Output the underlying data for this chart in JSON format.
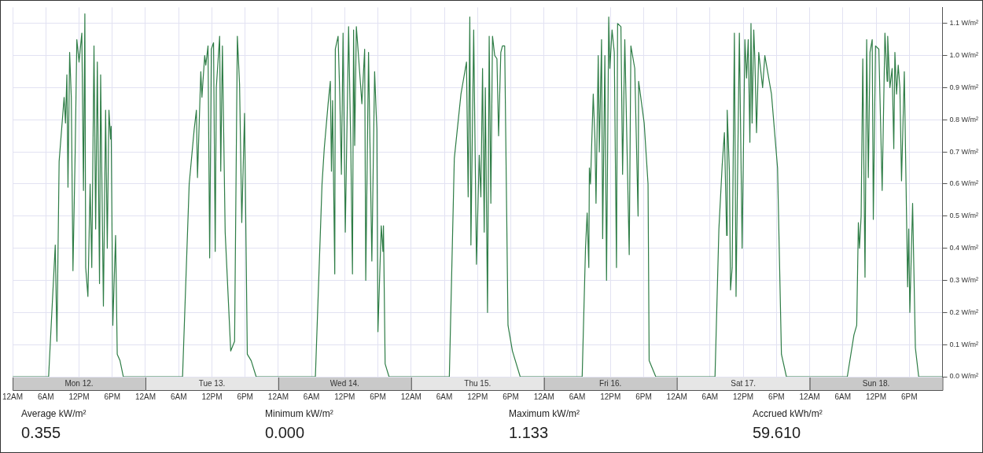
{
  "chart_data": {
    "type": "line",
    "marker": "none",
    "line_style": "solid",
    "grid": true,
    "legend": false,
    "xlim": [
      "--03-12T00:00",
      "--03-19T00:00"
    ],
    "ylim": [
      0,
      1.15
    ],
    "xticks": [
      {
        "value": "--03-12T00:00",
        "label": "12AM"
      },
      {
        "value": "--03-12T06:00",
        "label": "6AM"
      },
      {
        "value": "--03-12T12:00",
        "label": "12PM"
      },
      {
        "value": "--03-12T18:00",
        "label": "6PM"
      },
      {
        "value": "--03-13T00:00",
        "label": "12AM"
      },
      {
        "value": "--03-13T06:00",
        "label": "6AM"
      },
      {
        "value": "--03-13T12:00",
        "label": "12PM"
      },
      {
        "value": "--03-13T18:00",
        "label": "6PM"
      },
      {
        "value": "--03-14T00:00",
        "label": "12AM"
      },
      {
        "value": "--03-14T06:00",
        "label": "6AM"
      },
      {
        "value": "--03-14T12:00",
        "label": "12PM"
      },
      {
        "value": "--03-14T18:00",
        "label": "6PM"
      },
      {
        "value": "--03-15T00:00",
        "label": "12AM"
      },
      {
        "value": "--03-15T06:00",
        "label": "6AM"
      },
      {
        "value": "--03-15T12:00",
        "label": "12PM"
      },
      {
        "value": "--03-15T18:00",
        "label": "6PM"
      },
      {
        "value": "--03-16T00:00",
        "label": "12AM"
      },
      {
        "value": "--03-16T06:00",
        "label": "6AM"
      },
      {
        "value": "--03-16T12:00",
        "label": "12PM"
      },
      {
        "value": "--03-16T18:00",
        "label": "6PM"
      },
      {
        "value": "--03-17T00:00",
        "label": "12AM"
      },
      {
        "value": "--03-17T06:00",
        "label": "6AM"
      },
      {
        "value": "--03-17T12:00",
        "label": "12PM"
      },
      {
        "value": "--03-17T18:00",
        "label": "6PM"
      },
      {
        "value": "--03-18T00:00",
        "label": "12AM"
      },
      {
        "value": "--03-18T06:00",
        "label": "6AM"
      },
      {
        "value": "--03-18T12:00",
        "label": "12PM"
      },
      {
        "value": "--03-18T18:00",
        "label": "6PM"
      }
    ],
    "x2lim": [
      "--03-12T00:00",
      "--03-19T00:00"
    ],
    "x2ticks": [
      {
        "value": "--03-12T12:00",
        "label": "Mon 12."
      },
      {
        "value": "--03-13T12:00",
        "label": "Tue 13."
      },
      {
        "value": "--03-14T12:00",
        "label": "Wed 14."
      },
      {
        "value": "--03-15T12:00",
        "label": "Thu 15."
      },
      {
        "value": "--03-16T12:00",
        "label": "Fri 16."
      },
      {
        "value": "--03-17T12:00",
        "label": "Sat 17."
      },
      {
        "value": "--03-18T12:00",
        "label": "Sun 18."
      }
    ],
    "yticks": [
      {
        "value": 0,
        "label": "0.0 W/m²"
      },
      {
        "value": 0.1,
        "label": "0.1 W/m²"
      },
      {
        "value": 0.2,
        "label": "0.2 W/m²"
      },
      {
        "value": 0.3,
        "label": "0.3 W/m²"
      },
      {
        "value": 0.4,
        "label": "0.4 W/m²"
      },
      {
        "value": 0.5,
        "label": "0.5 W/m²"
      },
      {
        "value": 0.6,
        "label": "0.6 W/m²"
      },
      {
        "value": 0.7,
        "label": "0.7 W/m²"
      },
      {
        "value": 0.8,
        "label": "0.8 W/m²"
      },
      {
        "value": 0.9,
        "label": "0.9 W/m²"
      },
      {
        "value": 1.0,
        "label": "1.0 W/m²"
      },
      {
        "value": 1.1,
        "label": "1.1 W/m²"
      }
    ],
    "x": [
      "--03-12T00:00",
      "--03-12T06:30",
      "--03-12T07:42",
      "--03-12T08:00",
      "--03-12T08:24",
      "--03-12T09:18",
      "--03-12T09:33",
      "--03-12T09:48",
      "--03-12T10:00",
      "--03-12T10:18",
      "--03-12T10:36",
      "--03-12T10:54",
      "--03-12T11:18",
      "--03-12T11:36",
      "--03-12T12:00",
      "--03-12T12:30",
      "--03-12T12:48",
      "--03-12T13:03",
      "--03-12T13:12",
      "--03-12T13:36",
      "--03-12T14:00",
      "--03-12T14:18",
      "--03-12T14:42",
      "--03-12T15:00",
      "--03-12T15:18",
      "--03-12T15:42",
      "--03-12T15:54",
      "--03-12T16:24",
      "--03-12T16:48",
      "--03-12T17:06",
      "--03-12T17:24",
      "--03-12T17:42",
      "--03-12T17:48",
      "--03-12T18:06",
      "--03-12T18:36",
      "--03-12T18:54",
      "--03-12T19:24",
      "--03-12T20:00",
      "--03-13T06:42",
      "--03-13T07:54",
      "--03-13T08:48",
      "--03-13T09:12",
      "--03-13T09:24",
      "--03-13T10:00",
      "--03-13T10:12",
      "--03-13T10:42",
      "--03-13T10:54",
      "--03-13T11:18",
      "--03-13T11:36",
      "--03-13T11:54",
      "--03-13T12:18",
      "--03-13T12:36",
      "--03-13T12:48",
      "--03-13T13:24",
      "--03-13T13:36",
      "--03-13T13:54",
      "--03-13T14:24",
      "--03-13T15:24",
      "--03-13T16:06",
      "--03-13T16:36",
      "--03-13T17:00",
      "--03-13T17:24",
      "--03-13T17:54",
      "--03-13T18:24",
      "--03-13T19:06",
      "--03-13T20:00",
      "--03-14T06:42",
      "--03-14T07:54",
      "--03-14T08:18",
      "--03-14T09:00",
      "--03-14T09:24",
      "--03-14T09:36",
      "--03-14T09:48",
      "--03-14T10:12",
      "--03-14T10:18",
      "--03-14T10:48",
      "--03-14T11:06",
      "--03-14T11:24",
      "--03-14T11:42",
      "--03-14T12:06",
      "--03-14T12:42",
      "--03-14T13:06",
      "--03-14T13:24",
      "--03-14T13:36",
      "--03-14T13:48",
      "--03-14T14:06",
      "--03-14T14:24",
      "--03-14T15:06",
      "--03-14T15:36",
      "--03-14T15:48",
      "--03-14T16:18",
      "--03-14T16:54",
      "--03-14T17:24",
      "--03-14T17:48",
      "--03-14T18:00",
      "--03-14T18:36",
      "--03-14T18:54",
      "--03-14T19:00",
      "--03-14T19:18",
      "--03-14T20:00",
      "--03-15T06:54",
      "--03-15T07:48",
      "--03-15T09:00",
      "--03-15T09:30",
      "--03-15T10:00",
      "--03-15T10:18",
      "--03-15T10:36",
      "--03-15T10:48",
      "--03-15T11:18",
      "--03-15T11:48",
      "--03-15T12:18",
      "--03-15T12:36",
      "--03-15T12:54",
      "--03-15T13:12",
      "--03-15T13:24",
      "--03-15T13:48",
      "--03-15T14:06",
      "--03-15T14:24",
      "--03-15T14:42",
      "--03-15T15:06",
      "--03-15T15:30",
      "--03-15T15:48",
      "--03-15T16:12",
      "--03-15T16:30",
      "--03-15T16:54",
      "--03-15T17:30",
      "--03-15T18:18",
      "--03-15T19:42",
      "--03-16T06:54",
      "--03-16T07:30",
      "--03-16T07:48",
      "--03-16T08:06",
      "--03-16T08:12",
      "--03-16T08:24",
      "--03-16T08:54",
      "--03-16T09:12",
      "--03-16T09:24",
      "--03-16T09:48",
      "--03-16T10:00",
      "--03-16T10:24",
      "--03-16T10:36",
      "--03-16T11:00",
      "--03-16T11:18",
      "--03-16T11:42",
      "--03-16T11:54",
      "--03-16T12:18",
      "--03-16T12:42",
      "--03-16T13:06",
      "--03-16T13:18",
      "--03-16T13:54",
      "--03-16T14:12",
      "--03-16T14:36",
      "--03-16T15:24",
      "--03-16T15:42",
      "--03-16T16:24",
      "--03-16T17:00",
      "--03-16T17:06",
      "--03-16T18:06",
      "--03-16T18:48",
      "--03-16T19:00",
      "--03-16T20:12",
      "--03-17T06:54",
      "--03-17T07:36",
      "--03-17T08:12",
      "--03-17T08:36",
      "--03-17T09:00",
      "--03-17T09:06",
      "--03-17T09:30",
      "--03-17T09:42",
      "--03-17T10:00",
      "--03-17T10:24",
      "--03-17T10:42",
      "--03-17T11:18",
      "--03-17T11:48",
      "--03-17T12:18",
      "--03-17T12:36",
      "--03-17T12:54",
      "--03-17T13:12",
      "--03-17T13:24",
      "--03-17T13:36",
      "--03-17T13:54",
      "--03-17T14:06",
      "--03-17T14:24",
      "--03-17T14:48",
      "--03-17T15:30",
      "--03-17T15:54",
      "--03-17T17:06",
      "--03-17T18:12",
      "--03-17T18:54",
      "--03-17T19:48",
      "--03-18T06:48",
      "--03-18T08:00",
      "--03-18T08:30",
      "--03-18T08:48",
      "--03-18T09:00",
      "--03-18T09:18",
      "--03-18T09:36",
      "--03-18T10:00",
      "--03-18T10:18",
      "--03-18T10:36",
      "--03-18T10:54",
      "--03-18T11:18",
      "--03-18T11:30",
      "--03-18T11:54",
      "--03-18T12:30",
      "--03-18T13:06",
      "--03-18T13:36",
      "--03-18T14:00",
      "--03-18T14:06",
      "--03-18T14:30",
      "--03-18T14:54",
      "--03-18T15:12",
      "--03-18T15:24",
      "--03-18T15:42",
      "--03-18T16:00",
      "--03-18T16:18",
      "--03-18T16:36",
      "--03-18T17:06",
      "--03-18T17:42",
      "--03-18T17:54",
      "--03-18T18:06",
      "--03-18T18:36",
      "--03-18T19:06",
      "--03-18T19:42",
      "--03-19T00:00"
    ],
    "series": [
      {
        "color": "#2e7d46",
        "values": [
          0,
          0,
          0.41,
          0.11,
          0.67,
          0.87,
          0.79,
          0.94,
          0.59,
          1.01,
          0.87,
          0.33,
          0.7,
          1.05,
          0.98,
          1.07,
          0.58,
          1.13,
          0.34,
          0.25,
          0.6,
          0.34,
          1.03,
          0.46,
          0.98,
          0.29,
          0.94,
          0.22,
          0.83,
          0.4,
          0.83,
          0.74,
          0.78,
          0.16,
          0.44,
          0.07,
          0.05,
          0,
          0,
          0.6,
          0.77,
          0.83,
          0.62,
          0.95,
          0.87,
          1.0,
          0.97,
          1.03,
          0.37,
          1.02,
          1.04,
          0.39,
          0.9,
          1.06,
          0.64,
          1.03,
          0.45,
          0.08,
          0.11,
          1.06,
          0.91,
          0.48,
          0.82,
          0.07,
          0.05,
          0,
          0,
          0.6,
          0.71,
          0.85,
          0.92,
          0.64,
          0.86,
          0.32,
          1.02,
          1.06,
          0.88,
          0.63,
          1.07,
          0.45,
          1.09,
          0.71,
          0.32,
          1.08,
          0.72,
          1.09,
          1.02,
          0.85,
          1.02,
          0.3,
          1.01,
          0.36,
          0.95,
          0.77,
          0.14,
          0.47,
          0.39,
          0.47,
          0.04,
          0,
          0,
          0.68,
          0.88,
          0.93,
          0.98,
          0.56,
          1.12,
          0.41,
          1.08,
          0.35,
          0.69,
          0.56,
          0.96,
          0.45,
          0.9,
          0.2,
          1.06,
          0.54,
          1.06,
          1.0,
          0.99,
          0.75,
          1.01,
          1.03,
          1.03,
          0.16,
          0.08,
          0,
          0,
          0.4,
          0.51,
          0.34,
          0.65,
          0.6,
          0.88,
          0.74,
          0.54,
          1.0,
          0.7,
          1.05,
          0.43,
          1.0,
          0.3,
          1.12,
          0.96,
          1.08,
          1.01,
          0.34,
          1.1,
          1.09,
          0.63,
          1.05,
          0.38,
          1.03,
          0.96,
          0.5,
          0.92,
          0.79,
          0.6,
          0.05,
          0,
          0,
          0.46,
          0.66,
          0.76,
          0.44,
          0.83,
          0.64,
          0.27,
          0.34,
          1.07,
          0.25,
          1.07,
          0.4,
          1.05,
          0.93,
          1.05,
          0.73,
          1.1,
          0.79,
          1.08,
          0.99,
          0.76,
          1.01,
          0.9,
          1.0,
          0.88,
          0.65,
          0.07,
          0,
          0,
          0.13,
          0.16,
          0.48,
          0.4,
          0.5,
          0.99,
          0.31,
          1.05,
          0.62,
          1.01,
          1.05,
          0.49,
          1.03,
          1.02,
          0.58,
          1.07,
          0.92,
          1.06,
          0.9,
          0.96,
          0.71,
          1.01,
          0.88,
          0.97,
          0.9,
          0.61,
          0.95,
          0.28,
          0.46,
          0.2,
          0.54,
          0.09,
          0,
          0
        ]
      }
    ],
    "annotations": [
      "Average kW/m²",
      "0.355",
      "Minimum kW/m²",
      "0.000",
      "Maximum kW/m²",
      "1.133",
      "Accrued kWh/m²",
      "59.610"
    ]
  }
}
